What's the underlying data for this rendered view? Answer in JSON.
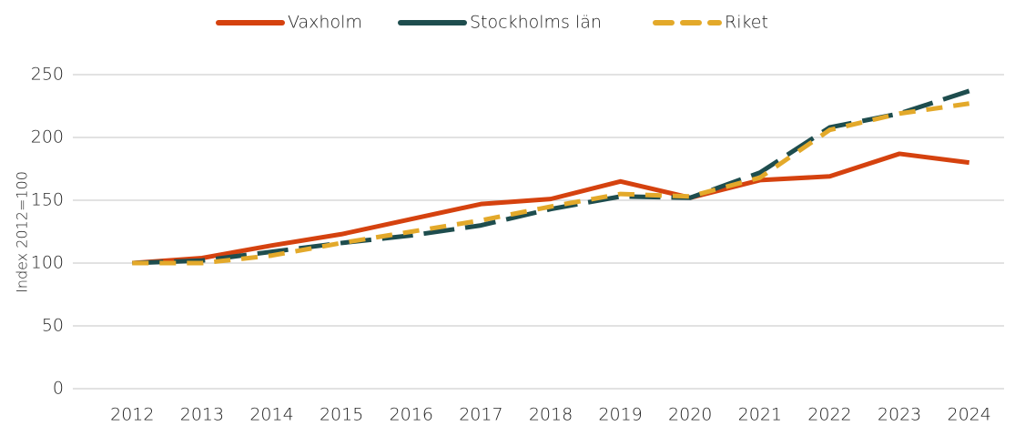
{
  "chart_data": {
    "type": "line",
    "y_label": "Index 2012=100",
    "categories": [
      "2012",
      "2013",
      "2014",
      "2015",
      "2016",
      "2017",
      "2018",
      "2019",
      "2020",
      "2021",
      "2022",
      "2023",
      "2024"
    ],
    "series": [
      {
        "name": "Vaxholm",
        "color": "#d5420f",
        "dash": "solid",
        "values": [
          100,
          104,
          114,
          123,
          135,
          147,
          151,
          165,
          152,
          166,
          169,
          187,
          180
        ]
      },
      {
        "name": "Stockholms län",
        "color": "#1e4d4e",
        "dash": "long",
        "values": [
          100,
          102,
          109,
          116,
          122,
          130,
          143,
          153,
          152,
          172,
          208,
          219,
          237
        ]
      },
      {
        "name": "Riket",
        "color": "#e3a92a",
        "dash": "short",
        "values": [
          100,
          100,
          106,
          116,
          125,
          134,
          145,
          155,
          153,
          168,
          206,
          219,
          227
        ]
      }
    ],
    "ylim": [
      0,
      250
    ],
    "yticks": [
      0,
      50,
      100,
      150,
      200,
      250
    ],
    "grid": true,
    "legend": "top"
  }
}
